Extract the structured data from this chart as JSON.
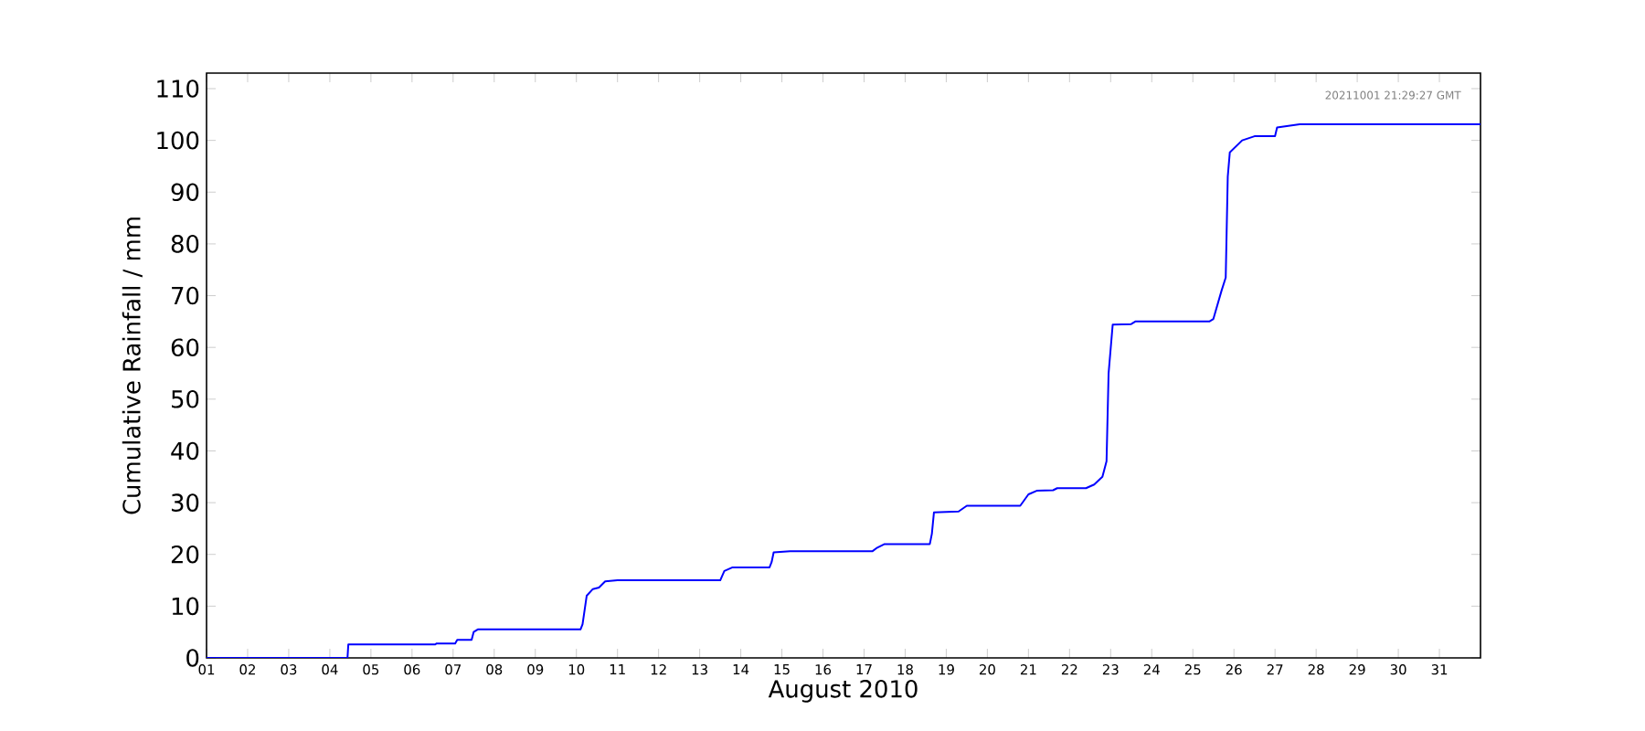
{
  "chart_data": {
    "type": "line",
    "xlabel": "August 2010",
    "ylabel": "Cumulative Rainfall / mm",
    "annotations": [
      "20211001 21:29:27 GMT"
    ],
    "xlim": [
      1,
      32
    ],
    "xticks": [
      {
        "value": 1,
        "label": "01"
      },
      {
        "value": 2,
        "label": "02"
      },
      {
        "value": 3,
        "label": "03"
      },
      {
        "value": 4,
        "label": "04"
      },
      {
        "value": 5,
        "label": "05"
      },
      {
        "value": 6,
        "label": "06"
      },
      {
        "value": 7,
        "label": "07"
      },
      {
        "value": 8,
        "label": "08"
      },
      {
        "value": 9,
        "label": "09"
      },
      {
        "value": 10,
        "label": "10"
      },
      {
        "value": 11,
        "label": "11"
      },
      {
        "value": 12,
        "label": "12"
      },
      {
        "value": 13,
        "label": "13"
      },
      {
        "value": 14,
        "label": "14"
      },
      {
        "value": 15,
        "label": "15"
      },
      {
        "value": 16,
        "label": "16"
      },
      {
        "value": 17,
        "label": "17"
      },
      {
        "value": 18,
        "label": "18"
      },
      {
        "value": 19,
        "label": "19"
      },
      {
        "value": 20,
        "label": "20"
      },
      {
        "value": 21,
        "label": "21"
      },
      {
        "value": 22,
        "label": "22"
      },
      {
        "value": 23,
        "label": "23"
      },
      {
        "value": 24,
        "label": "24"
      },
      {
        "value": 25,
        "label": "25"
      },
      {
        "value": 26,
        "label": "26"
      },
      {
        "value": 27,
        "label": "27"
      },
      {
        "value": 28,
        "label": "28"
      },
      {
        "value": 29,
        "label": "29"
      },
      {
        "value": 30,
        "label": "30"
      },
      {
        "value": 31,
        "label": "31"
      }
    ],
    "ylim": [
      0,
      113
    ],
    "yticks": [
      0,
      10,
      20,
      30,
      40,
      50,
      60,
      70,
      80,
      90,
      100,
      110
    ],
    "grid": false,
    "marker": "none",
    "line_style": "solid",
    "series": [
      {
        "color": "#0000ff",
        "x": [
          1,
          4.43,
          4.45,
          6.56,
          6.6,
          7.05,
          7.1,
          7.45,
          7.5,
          7.6,
          10.1,
          10.15,
          10.25,
          10.4,
          10.55,
          10.7,
          11.0,
          13.5,
          13.6,
          13.8,
          14.7,
          14.75,
          14.8,
          15.2,
          17.2,
          17.3,
          17.5,
          18.6,
          18.65,
          18.7,
          19.3,
          19.5,
          20.8,
          21.0,
          21.2,
          21.6,
          21.7,
          22.4,
          22.6,
          22.8,
          22.9,
          22.95,
          23.05,
          23.5,
          23.6,
          25.4,
          25.5,
          25.7,
          25.8,
          25.85,
          25.9,
          26.2,
          26.5,
          27.0,
          27.05,
          27.6,
          32
        ],
        "values": [
          0,
          0,
          2.6,
          2.6,
          2.8,
          2.8,
          3.5,
          3.5,
          5.0,
          5.5,
          5.5,
          6.5,
          12,
          13.3,
          13.6,
          14.8,
          15.0,
          15.0,
          16.8,
          17.5,
          17.5,
          18.5,
          20.4,
          20.6,
          20.6,
          21.2,
          22,
          22,
          24,
          28.1,
          28.3,
          29.4,
          29.4,
          31.6,
          32.3,
          32.4,
          32.8,
          32.8,
          33.5,
          35,
          38,
          55,
          64.4,
          64.5,
          65,
          65,
          65.5,
          71,
          73.5,
          93,
          97.7,
          100,
          100.8,
          100.8,
          102.5,
          103.1,
          103.1
        ]
      }
    ]
  }
}
